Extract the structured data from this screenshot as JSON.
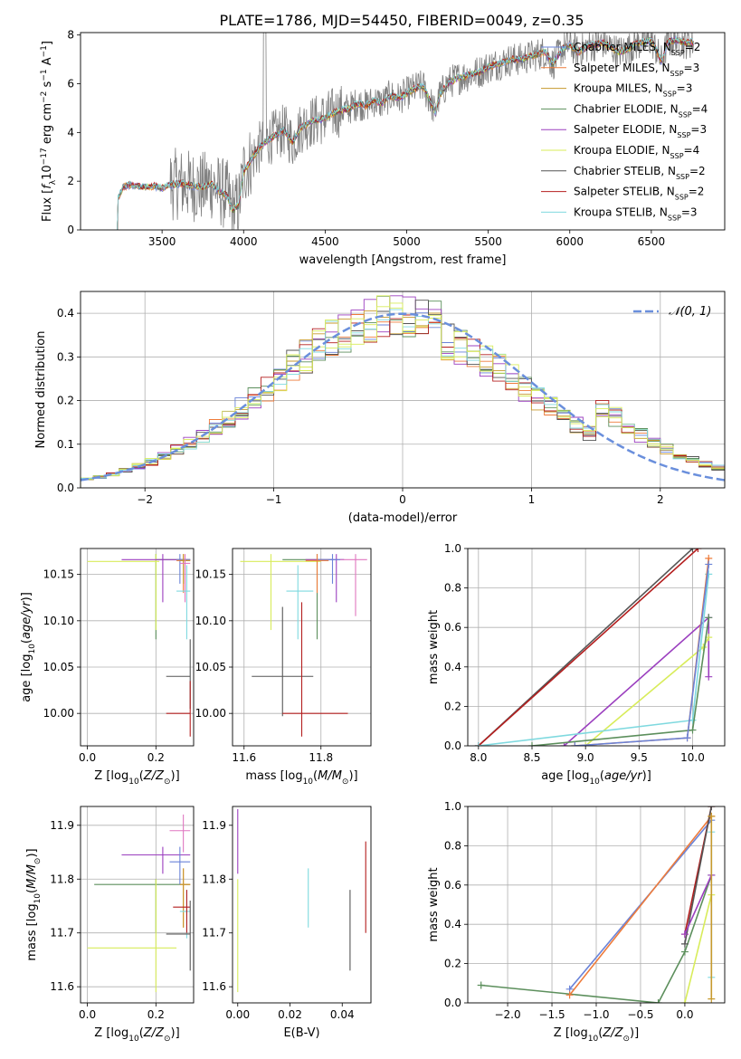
{
  "figure_title": "PLATE=1786, MJD=54450, FIBERID=0049, z=0.35",
  "colors": {
    "chabrier_miles": "#6a83d8",
    "salpeter_miles": "#ee7b3a",
    "kroupa_miles": "#c79a2e",
    "chabrier_elodie": "#5c8f5c",
    "salpeter_elodie": "#9b3fbf",
    "kroupa_elodie": "#d8ec5a",
    "chabrier_stelib": "#555555",
    "salpeter_stelib": "#b41e1e",
    "kroupa_stelib": "#7fd9df",
    "data": "#808080",
    "normal": "#6a8fdc"
  },
  "chart_data": [
    {
      "id": "spectrum",
      "type": "line",
      "title": "PLATE=1786, MJD=54450, FIBERID=0049, z=0.35",
      "xlabel": "wavelength [Angstrom, rest frame]",
      "ylabel": "Flux [f_λ 10^-17 erg cm^-2 s^-1 A^-1]",
      "xlim": [
        3000,
        6950
      ],
      "ylim": [
        0,
        8.1
      ],
      "xticks": [
        3500,
        4000,
        4500,
        5000,
        5500,
        6000,
        6500
      ],
      "yticks": [
        0,
        2,
        4,
        6,
        8
      ],
      "legend_position": "top-right",
      "series": [
        {
          "name": "Chabrier MILES, N_SSP=2",
          "color": "#6a83d8"
        },
        {
          "name": "Salpeter MILES, N_SSP=3",
          "color": "#ee7b3a"
        },
        {
          "name": "Kroupa MILES, N_SSP=3",
          "color": "#c79a2e"
        },
        {
          "name": "Chabrier ELODIE, N_SSP=4",
          "color": "#5c8f5c"
        },
        {
          "name": "Salpeter ELODIE, N_SSP=3",
          "color": "#9b3fbf"
        },
        {
          "name": "Kroupa ELODIE, N_SSP=4",
          "color": "#d8ec5a"
        },
        {
          "name": "Chabrier STELIB, N_SSP=2",
          "color": "#555555"
        },
        {
          "name": "Salpeter STELIB, N_SSP=2",
          "color": "#b41e1e"
        },
        {
          "name": "Kroupa STELIB, N_SSP=3",
          "color": "#7fd9df"
        }
      ],
      "model_curve": {
        "x": [
          3225,
          3230,
          3260,
          3300,
          3350,
          3400,
          3450,
          3500,
          3550,
          3600,
          3650,
          3700,
          3750,
          3800,
          3850,
          3900,
          3930,
          3970,
          4000,
          4050,
          4100,
          4150,
          4200,
          4250,
          4300,
          4350,
          4400,
          4450,
          4500,
          4550,
          4600,
          4650,
          4700,
          4750,
          4800,
          4850,
          4900,
          4950,
          5000,
          5050,
          5100,
          5150,
          5175,
          5200,
          5250,
          5300,
          5350,
          5400,
          5450,
          5500,
          5550,
          5600,
          5650,
          5700,
          5750,
          5800,
          5850,
          5895,
          5950,
          6000,
          6050,
          6100,
          6150,
          6200,
          6250,
          6300,
          6350,
          6400,
          6450,
          6500,
          6563,
          6600,
          6650,
          6700,
          6760
        ],
        "y": [
          0,
          1.3,
          1.75,
          1.85,
          1.8,
          1.75,
          1.8,
          1.7,
          1.85,
          1.9,
          1.85,
          1.8,
          1.75,
          1.9,
          1.6,
          1.4,
          0.8,
          1.0,
          2.4,
          2.9,
          3.4,
          3.7,
          3.9,
          4.1,
          3.6,
          4.2,
          4.4,
          4.5,
          4.6,
          4.8,
          4.9,
          5.0,
          5.2,
          5.1,
          5.3,
          5.2,
          5.5,
          5.4,
          5.6,
          5.8,
          5.9,
          5.2,
          4.8,
          5.5,
          6.0,
          6.2,
          6.3,
          6.4,
          6.5,
          6.7,
          6.8,
          6.9,
          7.0,
          7.0,
          7.1,
          7.2,
          7.3,
          6.8,
          7.4,
          7.6,
          7.3,
          7.5,
          7.6,
          7.7,
          7.5,
          7.3,
          7.4,
          7.6,
          7.7,
          7.8,
          6.9,
          7.7,
          7.8,
          7.7,
          7.7
        ]
      }
    },
    {
      "id": "residuals",
      "type": "bar",
      "xlabel": "(data-model)/error",
      "ylabel": "Normed distribution",
      "xlim": [
        -2.5,
        2.5
      ],
      "ylim": [
        0,
        0.45
      ],
      "xticks": [
        -2,
        -1,
        0,
        1,
        2
      ],
      "yticks": [
        0.0,
        0.1,
        0.2,
        0.3,
        0.4
      ],
      "grid": true,
      "legend_position": "top-right",
      "gaussian_label": "𝒩(0, 1)",
      "gaussian": {
        "mu": 0,
        "sigma": 1
      }
    },
    {
      "id": "age_vs_Z",
      "type": "scatter",
      "xlabel": "Z [log10(Z/Z⊙)]",
      "ylabel": "age  [log10(age/yr)]",
      "xlim": [
        -0.02,
        0.31
      ],
      "ylim": [
        9.965,
        10.178
      ],
      "xticks": [
        0.0,
        0.2
      ],
      "yticks": [
        10.0,
        10.05,
        10.1,
        10.15
      ],
      "grid": true,
      "points": [
        {
          "color": "#5c8f5c",
          "x": 0.2,
          "y": 10.166,
          "xerr": [
            0.2,
            0.3
          ],
          "yerr": [
            10.08,
            10.172
          ]
        },
        {
          "color": "#d8ec5a",
          "x": 0.2,
          "y": 10.164,
          "xerr": [
            0.0,
            0.21
          ],
          "yerr": [
            10.09,
            10.172
          ]
        },
        {
          "color": "#9b3fbf",
          "x": 0.22,
          "y": 10.166,
          "xerr": [
            0.1,
            0.3
          ],
          "yerr": [
            10.12,
            10.172
          ]
        },
        {
          "color": "#6a83d8",
          "x": 0.27,
          "y": 10.166,
          "xerr": [
            0.26,
            0.3
          ],
          "yerr": [
            10.14,
            10.172
          ]
        },
        {
          "color": "#ee7b3a",
          "x": 0.28,
          "y": 10.165,
          "xerr": [
            0.26,
            0.3
          ],
          "yerr": [
            10.13,
            10.172
          ]
        },
        {
          "color": "#c79a2e",
          "x": 0.28,
          "y": 10.165,
          "xerr": [
            0.27,
            0.3
          ],
          "yerr": [
            10.14,
            10.172
          ]
        },
        {
          "color": "#e077c0",
          "x": 0.285,
          "y": 10.162,
          "xerr": [
            0.27,
            0.3
          ],
          "yerr": [
            10.12,
            10.172
          ]
        },
        {
          "color": "#7fd9df",
          "x": 0.29,
          "y": 10.132,
          "xerr": [
            0.26,
            0.3
          ],
          "yerr": [
            10.08,
            10.16
          ]
        },
        {
          "color": "#555555",
          "x": 0.3,
          "y": 10.04,
          "xerr": [
            0.23,
            0.3
          ],
          "yerr": [
            10.005,
            10.08
          ]
        },
        {
          "color": "#b41e1e",
          "x": 0.3,
          "y": 10.0,
          "xerr": [
            0.23,
            0.3
          ],
          "yerr": [
            9.975,
            10.035
          ]
        }
      ]
    },
    {
      "id": "age_vs_mass",
      "type": "scatter",
      "xlabel": "mass [log10(M/M⊙)]",
      "ylabel": "",
      "xlim": [
        11.57,
        11.93
      ],
      "ylim": [
        9.965,
        10.178
      ],
      "xticks": [
        11.6,
        11.8
      ],
      "yticks": [
        10.0,
        10.05,
        10.1,
        10.15
      ],
      "grid": true,
      "points": [
        {
          "color": "#d8ec5a",
          "x": 11.67,
          "y": 10.164,
          "xerr": [
            11.59,
            11.8
          ],
          "yerr": [
            10.09,
            10.172
          ]
        },
        {
          "color": "#5c8f5c",
          "x": 11.79,
          "y": 10.166,
          "xerr": [
            11.7,
            11.83
          ],
          "yerr": [
            10.08,
            10.172
          ]
        },
        {
          "color": "#9b3fbf",
          "x": 11.84,
          "y": 10.166,
          "xerr": [
            11.76,
            11.86
          ],
          "yerr": [
            10.12,
            10.172
          ]
        },
        {
          "color": "#6a83d8",
          "x": 11.83,
          "y": 10.166,
          "xerr": [
            11.79,
            11.86
          ],
          "yerr": [
            10.14,
            10.172
          ]
        },
        {
          "color": "#ee7b3a",
          "x": 11.79,
          "y": 10.165,
          "xerr": [
            11.76,
            11.82
          ],
          "yerr": [
            10.13,
            10.172
          ]
        },
        {
          "color": "#e077c0",
          "x": 11.89,
          "y": 10.166,
          "xerr": [
            11.85,
            11.92
          ],
          "yerr": [
            10.105,
            10.172
          ]
        },
        {
          "color": "#7fd9df",
          "x": 11.74,
          "y": 10.132,
          "xerr": [
            11.71,
            11.78
          ],
          "yerr": [
            10.08,
            10.16
          ]
        },
        {
          "color": "#555555",
          "x": 11.7,
          "y": 10.04,
          "xerr": [
            11.62,
            11.78
          ],
          "yerr": [
            9.997,
            10.115
          ]
        },
        {
          "color": "#b41e1e",
          "x": 11.75,
          "y": 10.0,
          "xerr": [
            11.7,
            11.87
          ],
          "yerr": [
            9.975,
            10.12
          ]
        }
      ]
    },
    {
      "id": "mass_weight_vs_age",
      "type": "line",
      "xlabel": "age  [log10(age/yr)]",
      "ylabel": "mass weight",
      "xlim": [
        7.9,
        10.3
      ],
      "ylim": [
        0.0,
        1.0
      ],
      "xticks": [
        8.0,
        8.5,
        9.0,
        9.5,
        10.0
      ],
      "yticks": [
        0.0,
        0.2,
        0.4,
        0.6,
        0.8,
        1.0
      ],
      "grid": true,
      "series": [
        {
          "color": "#555555",
          "x": [
            8.0,
            10.0
          ],
          "y": [
            0.0,
            1.0
          ]
        },
        {
          "color": "#b41e1e",
          "x": [
            8.0,
            10.05
          ],
          "y": [
            0.0,
            1.0
          ]
        },
        {
          "color": "#9b3fbf",
          "x": [
            8.8,
            10.15,
            10.15
          ],
          "y": [
            0.0,
            0.65,
            0.35
          ]
        },
        {
          "color": "#d8ec5a",
          "x": [
            9.0,
            10.1,
            10.15
          ],
          "y": [
            0.0,
            0.5,
            0.55
          ]
        },
        {
          "color": "#7fd9df",
          "x": [
            8.0,
            10.0,
            10.15
          ],
          "y": [
            0.0,
            0.13,
            0.87
          ]
        },
        {
          "color": "#5c8f5c",
          "x": [
            8.5,
            10.0,
            10.15
          ],
          "y": [
            0.0,
            0.08,
            0.65
          ]
        },
        {
          "color": "#ee7b3a",
          "x": [
            8.9,
            9.95,
            10.15
          ],
          "y": [
            0.0,
            0.04,
            0.95
          ]
        },
        {
          "color": "#6a83d8",
          "x": [
            8.9,
            9.95,
            10.15
          ],
          "y": [
            0.0,
            0.04,
            0.92
          ]
        }
      ]
    },
    {
      "id": "mass_vs_Z",
      "type": "scatter",
      "xlabel": "Z [log10(Z/Z⊙)]",
      "ylabel": "mass [log10(M/M⊙)]",
      "xlim": [
        -0.02,
        0.31
      ],
      "ylim": [
        11.57,
        11.935
      ],
      "xticks": [
        0.0,
        0.2
      ],
      "yticks": [
        11.6,
        11.7,
        11.8,
        11.9
      ],
      "grid": true,
      "points": [
        {
          "color": "#5c8f5c",
          "x": 0.2,
          "y": 11.79,
          "xerr": [
            0.02,
            0.3
          ],
          "yerr": [
            11.7,
            11.8
          ]
        },
        {
          "color": "#d8ec5a",
          "x": 0.2,
          "y": 11.672,
          "xerr": [
            0.0,
            0.26
          ],
          "yerr": [
            11.59,
            11.8
          ]
        },
        {
          "color": "#9b3fbf",
          "x": 0.22,
          "y": 11.845,
          "xerr": [
            0.1,
            0.3
          ],
          "yerr": [
            11.81,
            11.86
          ]
        },
        {
          "color": "#6a83d8",
          "x": 0.27,
          "y": 11.832,
          "xerr": [
            0.24,
            0.3
          ],
          "yerr": [
            11.79,
            11.86
          ]
        },
        {
          "color": "#e077c0",
          "x": 0.28,
          "y": 11.89,
          "xerr": [
            0.24,
            0.3
          ],
          "yerr": [
            11.85,
            11.92
          ]
        },
        {
          "color": "#ee7b3a",
          "x": 0.28,
          "y": 11.79,
          "xerr": [
            0.27,
            0.3
          ],
          "yerr": [
            11.71,
            11.82
          ]
        },
        {
          "color": "#c79a2e",
          "x": 0.28,
          "y": 11.79,
          "xerr": [
            0.27,
            0.3
          ],
          "yerr": [
            11.71,
            11.82
          ]
        },
        {
          "color": "#7fd9df",
          "x": 0.29,
          "y": 11.74,
          "xerr": [
            0.27,
            0.3
          ],
          "yerr": [
            11.69,
            11.78
          ]
        },
        {
          "color": "#b41e1e",
          "x": 0.29,
          "y": 11.748,
          "xerr": [
            0.25,
            0.3
          ],
          "yerr": [
            11.7,
            11.78
          ]
        },
        {
          "color": "#555555",
          "x": 0.3,
          "y": 11.698,
          "xerr": [
            0.23,
            0.3
          ],
          "yerr": [
            11.63,
            11.76
          ]
        }
      ]
    },
    {
      "id": "mass_vs_ebv",
      "type": "scatter",
      "xlabel": "E(B-V)",
      "ylabel": "",
      "xlim": [
        -0.002,
        0.051
      ],
      "ylim": [
        11.57,
        11.935
      ],
      "xticks": [
        0.0,
        0.02,
        0.04
      ],
      "yticks": [
        11.6,
        11.7,
        11.8,
        11.9
      ],
      "grid": false,
      "points": [
        {
          "color": "#9b3fbf",
          "x": 0.0,
          "y": 11.845,
          "xerr": [
            0.0,
            0.0
          ],
          "yerr": [
            11.81,
            11.93
          ]
        },
        {
          "color": "#d8ec5a",
          "x": 0.0,
          "y": 11.672,
          "xerr": [
            0.0,
            0.0
          ],
          "yerr": [
            11.59,
            11.8
          ]
        },
        {
          "color": "#7fd9df",
          "x": 0.027,
          "y": 11.76,
          "xerr": [
            0.027,
            0.027
          ],
          "yerr": [
            11.71,
            11.82
          ]
        },
        {
          "color": "#555555",
          "x": 0.043,
          "y": 11.7,
          "xerr": [
            0.043,
            0.043
          ],
          "yerr": [
            11.63,
            11.78
          ]
        },
        {
          "color": "#b41e1e",
          "x": 0.049,
          "y": 11.79,
          "xerr": [
            0.049,
            0.049
          ],
          "yerr": [
            11.7,
            11.87
          ]
        }
      ]
    },
    {
      "id": "mass_weight_vs_Z",
      "type": "line",
      "xlabel": "Z [log10(Z/Z⊙)]",
      "ylabel": "mass weight",
      "xlim": [
        -2.45,
        0.45
      ],
      "ylim": [
        0.0,
        1.0
      ],
      "xticks": [
        -2.0,
        -1.5,
        -1.0,
        -0.5,
        0.0
      ],
      "yticks": [
        0.0,
        0.2,
        0.4,
        0.6,
        0.8,
        1.0
      ],
      "grid": true,
      "series": [
        {
          "color": "#5c8f5c",
          "x": [
            -2.3,
            -0.3,
            0.0,
            0.3
          ],
          "y": [
            0.09,
            0.0,
            0.26,
            0.65
          ]
        },
        {
          "color": "#6a83d8",
          "x": [
            -1.3,
            0.3
          ],
          "y": [
            0.07,
            0.93
          ]
        },
        {
          "color": "#ee7b3a",
          "x": [
            -1.3,
            0.3
          ],
          "y": [
            0.04,
            0.95
          ]
        },
        {
          "color": "#b41e1e",
          "x": [
            0.0,
            0.3
          ],
          "y": [
            0.35,
            1.0
          ]
        },
        {
          "color": "#555555",
          "x": [
            0.0,
            0.3
          ],
          "y": [
            0.3,
            1.0
          ]
        },
        {
          "color": "#9b3fbf",
          "x": [
            0.0,
            0.3
          ],
          "y": [
            0.35,
            0.65
          ]
        },
        {
          "color": "#d8ec5a",
          "x": [
            0.0,
            0.3
          ],
          "y": [
            0.0,
            0.55
          ]
        },
        {
          "color": "#7fd9df",
          "x": [
            0.3,
            0.3
          ],
          "y": [
            0.13,
            0.87
          ]
        },
        {
          "color": "#c79a2e",
          "x": [
            0.3,
            0.3
          ],
          "y": [
            0.02,
            0.95
          ]
        }
      ]
    }
  ]
}
